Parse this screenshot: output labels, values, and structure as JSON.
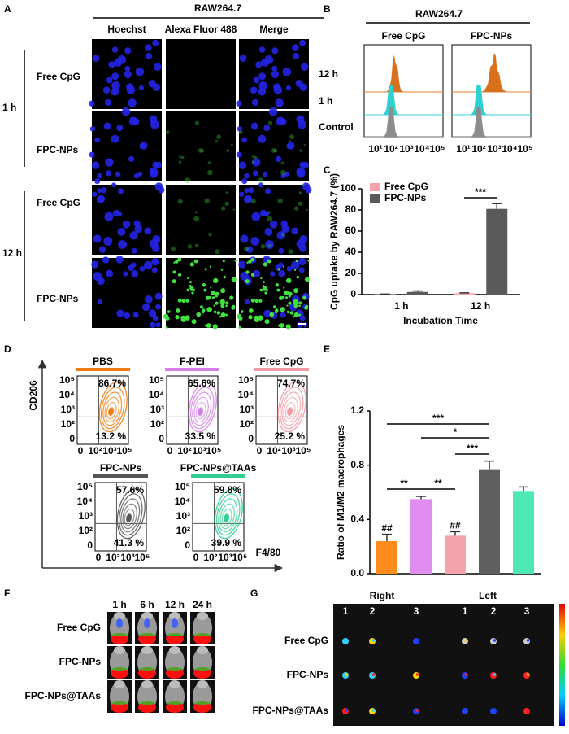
{
  "figure": {
    "A": {
      "label": "A",
      "title": "RAW264.7",
      "columns": [
        "Hoechst",
        "Alexa Fluor 488",
        "Merge"
      ],
      "rows": [
        "Free CpG",
        "FPC-NPs",
        "Free CpG",
        "FPC-NPs"
      ],
      "groups": [
        "1 h",
        "12 h"
      ]
    },
    "B": {
      "label": "B",
      "title": "RAW264.7",
      "columns": [
        "Free CpG",
        "FPC-NPs"
      ],
      "rows": [
        "12 h",
        "1 h",
        "Control"
      ],
      "x_tick_labels": [
        "10¹",
        "10²",
        "10³",
        "10⁴",
        "10⁵"
      ]
    },
    "D": {
      "label": "D",
      "y_axis": "CD206",
      "x_axis": "F4/80",
      "y_tick_labels": [
        "10⁵",
        "10⁴",
        "10³",
        "10²",
        "0"
      ],
      "x_tick_labels": [
        "0",
        "10²",
        "10³",
        "10⁵"
      ],
      "plots": [
        {
          "name": "PBS",
          "color": "#f07d14",
          "upper": "86.7%",
          "lower": "13.2 %"
        },
        {
          "name": "F-PEI",
          "color": "#d77ee8",
          "upper": "65.6%",
          "lower": "33.5 %"
        },
        {
          "name": "Free CpG",
          "color": "#f29aa3",
          "upper": "74.7%",
          "lower": "25.2 %"
        },
        {
          "name": "FPC-NPs",
          "color": "#555555",
          "upper": "57.6%",
          "lower": "41.3 %"
        },
        {
          "name": "FPC-NPs@TAAs",
          "color": "#2fcf8f",
          "upper": "59.8%",
          "lower": "39.9 %"
        }
      ]
    },
    "F": {
      "label": "F",
      "times": [
        "1 h",
        "6 h",
        "12 h",
        "24 h"
      ],
      "rows": [
        "Free CpG",
        "FPC-NPs",
        "FPC-NPs@TAAs"
      ]
    },
    "G": {
      "label": "G",
      "sides": [
        "Right",
        "Left"
      ],
      "numbers": [
        "1",
        "2",
        "3",
        "1",
        "2",
        "3"
      ],
      "rows": [
        "Free CpG",
        "FPC-NPs",
        "FPC-NPs@TAAs"
      ]
    }
  },
  "chart_data": [
    {
      "type": "bar",
      "label": "C",
      "y_label": "CpG uptake by RAW264.7 (%)",
      "x_label": "Incubation Time",
      "categories": [
        "1 h",
        "12 h"
      ],
      "series": [
        {
          "name": "Free CpG",
          "color": "#f5a3ab",
          "values": [
            0.3,
            1.2
          ],
          "errors": [
            0.2,
            0.4
          ]
        },
        {
          "name": "FPC-NPs",
          "color": "#5a5a5a",
          "values": [
            2.5,
            81
          ],
          "errors": [
            1,
            5
          ]
        }
      ],
      "ylim": [
        0,
        100
      ],
      "yticks": [
        0,
        20,
        40,
        60,
        80,
        100
      ],
      "annotations": [
        "***"
      ]
    },
    {
      "type": "bar",
      "label": "E",
      "y_label": "Ratio of M1/M2 macrophages",
      "categories": [
        null,
        null,
        null,
        null,
        null
      ],
      "values": [
        0.24,
        0.55,
        0.28,
        0.77,
        0.61
      ],
      "errors": [
        0.05,
        0.02,
        0.03,
        0.06,
        0.03
      ],
      "colors": [
        "#ff8c1a",
        "#df8ef0",
        "#f5a3ab",
        "#5f5f5f",
        "#4ee8b2"
      ],
      "ylim": [
        0,
        1.2
      ],
      "yticks": [
        {
          "value": 0,
          "label": "0.0"
        },
        0.4,
        0.8,
        1.2
      ],
      "value_annotations": [
        "##",
        null,
        "##",
        null,
        null
      ],
      "significance": [
        "***",
        "*",
        "***",
        "**",
        "**"
      ]
    }
  ]
}
